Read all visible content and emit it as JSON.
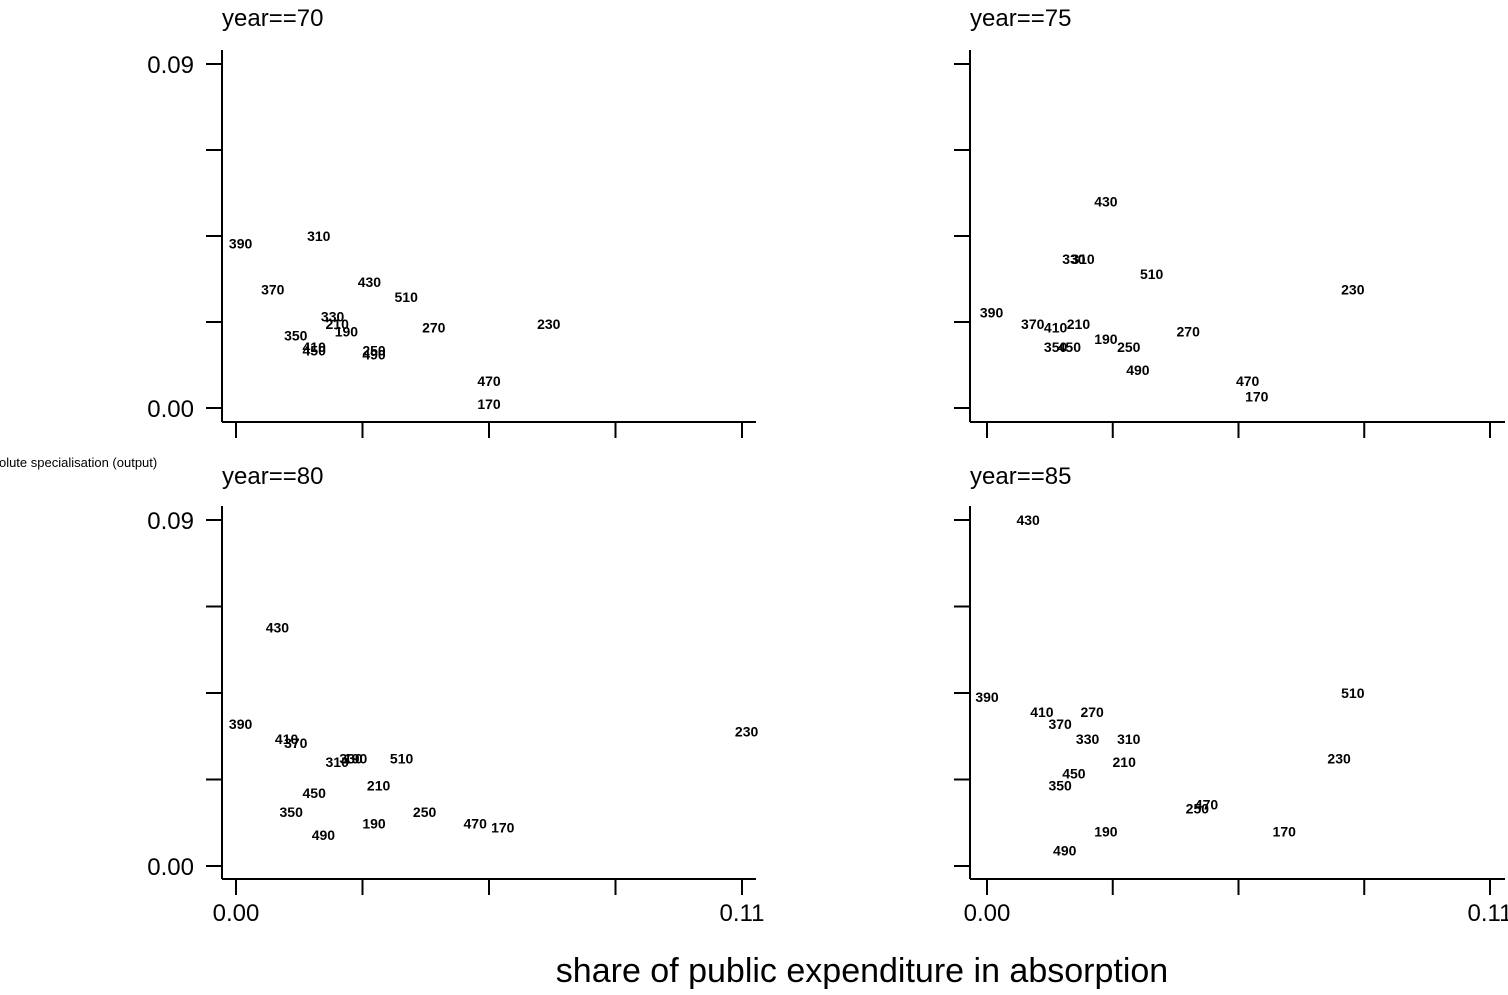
{
  "chart_data": {
    "type": "scatter",
    "xlabel": "share of public expenditure in absorption",
    "ylabel": "absolute specialisation (output)",
    "xlim": [
      0.0,
      0.11
    ],
    "ylim": [
      0.0,
      0.09
    ],
    "x_tick_labels": [
      "0.00",
      "0.11"
    ],
    "y_tick_labels": [
      "0.00",
      "0.09"
    ],
    "x_ticks": [
      0,
      0.0275,
      0.055,
      0.0825,
      0.11
    ],
    "y_ticks": [
      0,
      0.0225,
      0.045,
      0.0675,
      0.09
    ],
    "panels": [
      {
        "title": "year==70",
        "points": [
          {
            "label": "390",
            "x": 0.001,
            "y": 0.043
          },
          {
            "label": "310",
            "x": 0.018,
            "y": 0.045
          },
          {
            "label": "370",
            "x": 0.008,
            "y": 0.031
          },
          {
            "label": "430",
            "x": 0.029,
            "y": 0.033
          },
          {
            "label": "510",
            "x": 0.037,
            "y": 0.029
          },
          {
            "label": "330",
            "x": 0.021,
            "y": 0.024
          },
          {
            "label": "210",
            "x": 0.022,
            "y": 0.022
          },
          {
            "label": "190",
            "x": 0.024,
            "y": 0.02
          },
          {
            "label": "350",
            "x": 0.013,
            "y": 0.019
          },
          {
            "label": "410",
            "x": 0.017,
            "y": 0.016
          },
          {
            "label": "450",
            "x": 0.017,
            "y": 0.015
          },
          {
            "label": "250",
            "x": 0.03,
            "y": 0.015
          },
          {
            "label": "490",
            "x": 0.03,
            "y": 0.014
          },
          {
            "label": "270",
            "x": 0.043,
            "y": 0.021
          },
          {
            "label": "230",
            "x": 0.068,
            "y": 0.022
          },
          {
            "label": "470",
            "x": 0.055,
            "y": 0.007
          },
          {
            "label": "170",
            "x": 0.055,
            "y": 0.001
          }
        ]
      },
      {
        "title": "year==75",
        "points": [
          {
            "label": "430",
            "x": 0.026,
            "y": 0.054
          },
          {
            "label": "310",
            "x": 0.021,
            "y": 0.039
          },
          {
            "label": "330",
            "x": 0.019,
            "y": 0.039
          },
          {
            "label": "510",
            "x": 0.036,
            "y": 0.035
          },
          {
            "label": "230",
            "x": 0.08,
            "y": 0.031
          },
          {
            "label": "390",
            "x": 0.001,
            "y": 0.025
          },
          {
            "label": "370",
            "x": 0.01,
            "y": 0.022
          },
          {
            "label": "410",
            "x": 0.015,
            "y": 0.021
          },
          {
            "label": "210",
            "x": 0.02,
            "y": 0.022
          },
          {
            "label": "270",
            "x": 0.044,
            "y": 0.02
          },
          {
            "label": "190",
            "x": 0.026,
            "y": 0.018
          },
          {
            "label": "350",
            "x": 0.015,
            "y": 0.016
          },
          {
            "label": "450",
            "x": 0.018,
            "y": 0.016
          },
          {
            "label": "250",
            "x": 0.031,
            "y": 0.016
          },
          {
            "label": "490",
            "x": 0.033,
            "y": 0.01
          },
          {
            "label": "470",
            "x": 0.057,
            "y": 0.007
          },
          {
            "label": "170",
            "x": 0.059,
            "y": 0.003
          }
        ]
      },
      {
        "title": "year==80",
        "points": [
          {
            "label": "430",
            "x": 0.009,
            "y": 0.062
          },
          {
            "label": "390",
            "x": 0.001,
            "y": 0.037
          },
          {
            "label": "230",
            "x": 0.111,
            "y": 0.035
          },
          {
            "label": "410",
            "x": 0.011,
            "y": 0.033
          },
          {
            "label": "370",
            "x": 0.013,
            "y": 0.032
          },
          {
            "label": "510",
            "x": 0.036,
            "y": 0.028
          },
          {
            "label": "310",
            "x": 0.022,
            "y": 0.027
          },
          {
            "label": "330",
            "x": 0.025,
            "y": 0.028
          },
          {
            "label": "190",
            "x": 0.026,
            "y": 0.028
          },
          {
            "label": "210",
            "x": 0.031,
            "y": 0.021
          },
          {
            "label": "450",
            "x": 0.017,
            "y": 0.019
          },
          {
            "label": "350",
            "x": 0.012,
            "y": 0.014
          },
          {
            "label": "250",
            "x": 0.041,
            "y": 0.014
          },
          {
            "label": "190",
            "x": 0.03,
            "y": 0.011
          },
          {
            "label": "470",
            "x": 0.052,
            "y": 0.011
          },
          {
            "label": "170",
            "x": 0.058,
            "y": 0.01
          },
          {
            "label": "490",
            "x": 0.019,
            "y": 0.008
          }
        ]
      },
      {
        "title": "year==85",
        "points": [
          {
            "label": "430",
            "x": 0.009,
            "y": 0.09
          },
          {
            "label": "390",
            "x": 0.0,
            "y": 0.044
          },
          {
            "label": "510",
            "x": 0.08,
            "y": 0.045
          },
          {
            "label": "410",
            "x": 0.012,
            "y": 0.04
          },
          {
            "label": "270",
            "x": 0.023,
            "y": 0.04
          },
          {
            "label": "370",
            "x": 0.016,
            "y": 0.037
          },
          {
            "label": "330",
            "x": 0.022,
            "y": 0.033
          },
          {
            "label": "310",
            "x": 0.031,
            "y": 0.033
          },
          {
            "label": "230",
            "x": 0.077,
            "y": 0.028
          },
          {
            "label": "210",
            "x": 0.03,
            "y": 0.027
          },
          {
            "label": "450",
            "x": 0.019,
            "y": 0.024
          },
          {
            "label": "350",
            "x": 0.016,
            "y": 0.021
          },
          {
            "label": "470",
            "x": 0.048,
            "y": 0.016
          },
          {
            "label": "250",
            "x": 0.046,
            "y": 0.015
          },
          {
            "label": "190",
            "x": 0.026,
            "y": 0.009
          },
          {
            "label": "170",
            "x": 0.065,
            "y": 0.009
          },
          {
            "label": "490",
            "x": 0.017,
            "y": 0.004
          }
        ]
      }
    ]
  }
}
